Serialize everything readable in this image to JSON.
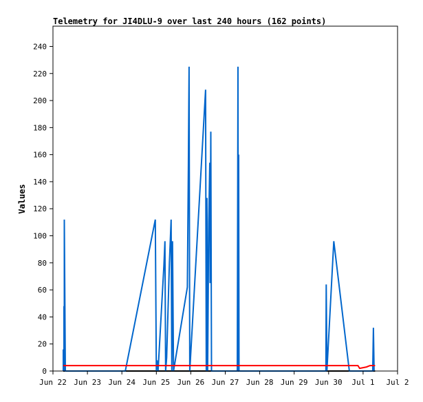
{
  "chart_data": {
    "type": "line",
    "title": "Telemetry for JI4DLU-9 over last 240 hours (162 points)",
    "xlabel": "",
    "ylabel": "Values",
    "ylim": [
      0,
      255
    ],
    "xlim": [
      22.0,
      32.0
    ],
    "yticks": [
      0,
      20,
      40,
      60,
      80,
      100,
      120,
      140,
      160,
      180,
      200,
      220,
      240
    ],
    "xticks": [
      {
        "x": 22,
        "label": "Jun 22"
      },
      {
        "x": 23,
        "label": "Jun 23"
      },
      {
        "x": 24,
        "label": "Jun 24"
      },
      {
        "x": 25,
        "label": "Jun 25"
      },
      {
        "x": 26,
        "label": "Jun 26"
      },
      {
        "x": 27,
        "label": "Jun 27"
      },
      {
        "x": 28,
        "label": "Jun 28"
      },
      {
        "x": 29,
        "label": "Jun 29"
      },
      {
        "x": 30,
        "label": "Jun 30"
      },
      {
        "x": 31,
        "label": "Jul 1"
      },
      {
        "x": 32,
        "label": "Jul 2"
      }
    ],
    "grid": false,
    "series": [
      {
        "color": "#000000",
        "points": [
          [
            22.3,
            0
          ],
          [
            31.35,
            0
          ]
        ]
      },
      {
        "color": "#0066cc",
        "points": [
          [
            22.3,
            0
          ],
          [
            22.3,
            16
          ],
          [
            22.32,
            0
          ],
          [
            22.32,
            48
          ],
          [
            22.33,
            0
          ],
          [
            22.33,
            112
          ],
          [
            22.36,
            0
          ],
          [
            24.1,
            0
          ],
          [
            24.97,
            112
          ],
          [
            25.0,
            0
          ],
          [
            25.02,
            8
          ],
          [
            25.05,
            0
          ],
          [
            25.22,
            78
          ],
          [
            25.25,
            96
          ],
          [
            25.27,
            0
          ],
          [
            25.3,
            10
          ],
          [
            25.38,
            80
          ],
          [
            25.43,
            112
          ],
          [
            25.45,
            0
          ],
          [
            25.47,
            96
          ],
          [
            25.5,
            0
          ],
          [
            25.9,
            62
          ],
          [
            25.93,
            152
          ],
          [
            25.95,
            225
          ],
          [
            25.97,
            0
          ],
          [
            26.43,
            208
          ],
          [
            26.45,
            0
          ],
          [
            26.47,
            128
          ],
          [
            26.49,
            0
          ],
          [
            26.52,
            110
          ],
          [
            26.55,
            154
          ],
          [
            26.56,
            65
          ],
          [
            26.58,
            177
          ],
          [
            26.6,
            0
          ],
          [
            27.35,
            0
          ],
          [
            27.37,
            225
          ],
          [
            27.38,
            0
          ],
          [
            27.39,
            160
          ],
          [
            27.4,
            0
          ],
          [
            29.92,
            0
          ],
          [
            29.93,
            64
          ],
          [
            29.95,
            0
          ],
          [
            30.15,
            96
          ],
          [
            30.6,
            0
          ],
          [
            31.28,
            0
          ],
          [
            31.3,
            32
          ],
          [
            31.32,
            0
          ]
        ]
      },
      {
        "color": "#ff0000",
        "points": [
          [
            22.3,
            4
          ],
          [
            30.85,
            4
          ],
          [
            30.9,
            2
          ],
          [
            31.1,
            3
          ],
          [
            31.2,
            4
          ],
          [
            31.35,
            4
          ]
        ]
      }
    ]
  }
}
